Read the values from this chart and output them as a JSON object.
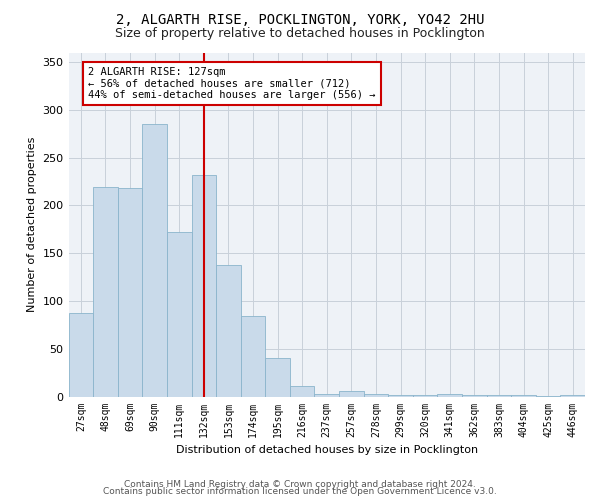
{
  "title": "2, ALGARTH RISE, POCKLINGTON, YORK, YO42 2HU",
  "subtitle": "Size of property relative to detached houses in Pocklington",
  "xlabel": "Distribution of detached houses by size in Pocklington",
  "ylabel": "Number of detached properties",
  "bar_color": "#c9daea",
  "bar_edge_color": "#8ab4cc",
  "bins": [
    "27sqm",
    "48sqm",
    "69sqm",
    "90sqm",
    "111sqm",
    "132sqm",
    "153sqm",
    "174sqm",
    "195sqm",
    "216sqm",
    "237sqm",
    "257sqm",
    "278sqm",
    "299sqm",
    "320sqm",
    "341sqm",
    "362sqm",
    "383sqm",
    "404sqm",
    "425sqm",
    "446sqm"
  ],
  "values": [
    87,
    219,
    218,
    285,
    172,
    232,
    138,
    84,
    40,
    11,
    3,
    6,
    3,
    2,
    2,
    3,
    2,
    2,
    2,
    1,
    2
  ],
  "ylim": [
    0,
    360
  ],
  "yticks": [
    0,
    50,
    100,
    150,
    200,
    250,
    300,
    350
  ],
  "property_line_x": 5.0,
  "annotation_text": "2 ALGARTH RISE: 127sqm\n← 56% of detached houses are smaller (712)\n44% of semi-detached houses are larger (556) →",
  "annotation_box_color": "#ffffff",
  "annotation_box_edge_color": "#cc0000",
  "footer1": "Contains HM Land Registry data © Crown copyright and database right 2024.",
  "footer2": "Contains public sector information licensed under the Open Government Licence v3.0.",
  "background_color": "#eef2f7",
  "grid_color": "#c8d0da",
  "red_line_color": "#cc0000",
  "title_fontsize": 10,
  "subtitle_fontsize": 9,
  "ylabel_fontsize": 8,
  "xlabel_fontsize": 8,
  "ytick_fontsize": 8,
  "xtick_fontsize": 7
}
